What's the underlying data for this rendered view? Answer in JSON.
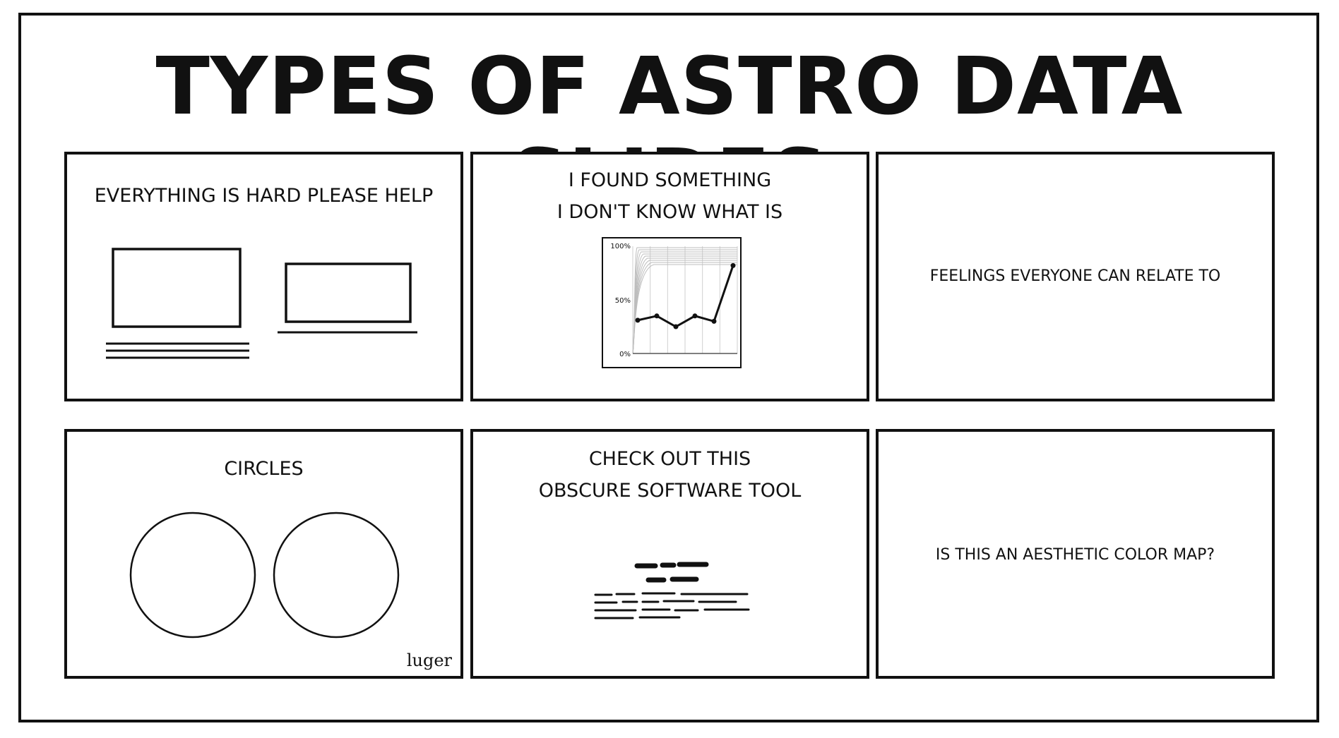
{
  "title": "TYPES OF ASTRO DATA SLIDES",
  "panels": {
    "everything_hard": {
      "text": "EVERYTHING IS HARD PLEASE HELP"
    },
    "found_something": {
      "line1": "I FOUND SOMETHING",
      "line2": "I DON'T KNOW WHAT IS",
      "chart": {
        "y_tick_labels": [
          "100%",
          "50%",
          "0%"
        ],
        "ylim": [
          0,
          100
        ],
        "series_points": [
          31,
          35,
          25,
          35,
          30,
          82
        ]
      }
    },
    "feelings": {
      "text": "FEELINGS EVERYONE CAN RELATE TO"
    },
    "circles": {
      "text": "CIRCLES",
      "signature": "luger"
    },
    "obscure_tool": {
      "line1": "CHECK OUT THIS",
      "line2": "OBSCURE SOFTWARE TOOL"
    },
    "color_map": {
      "text": "IS THIS AN AESTHETIC COLOR MAP?"
    }
  }
}
